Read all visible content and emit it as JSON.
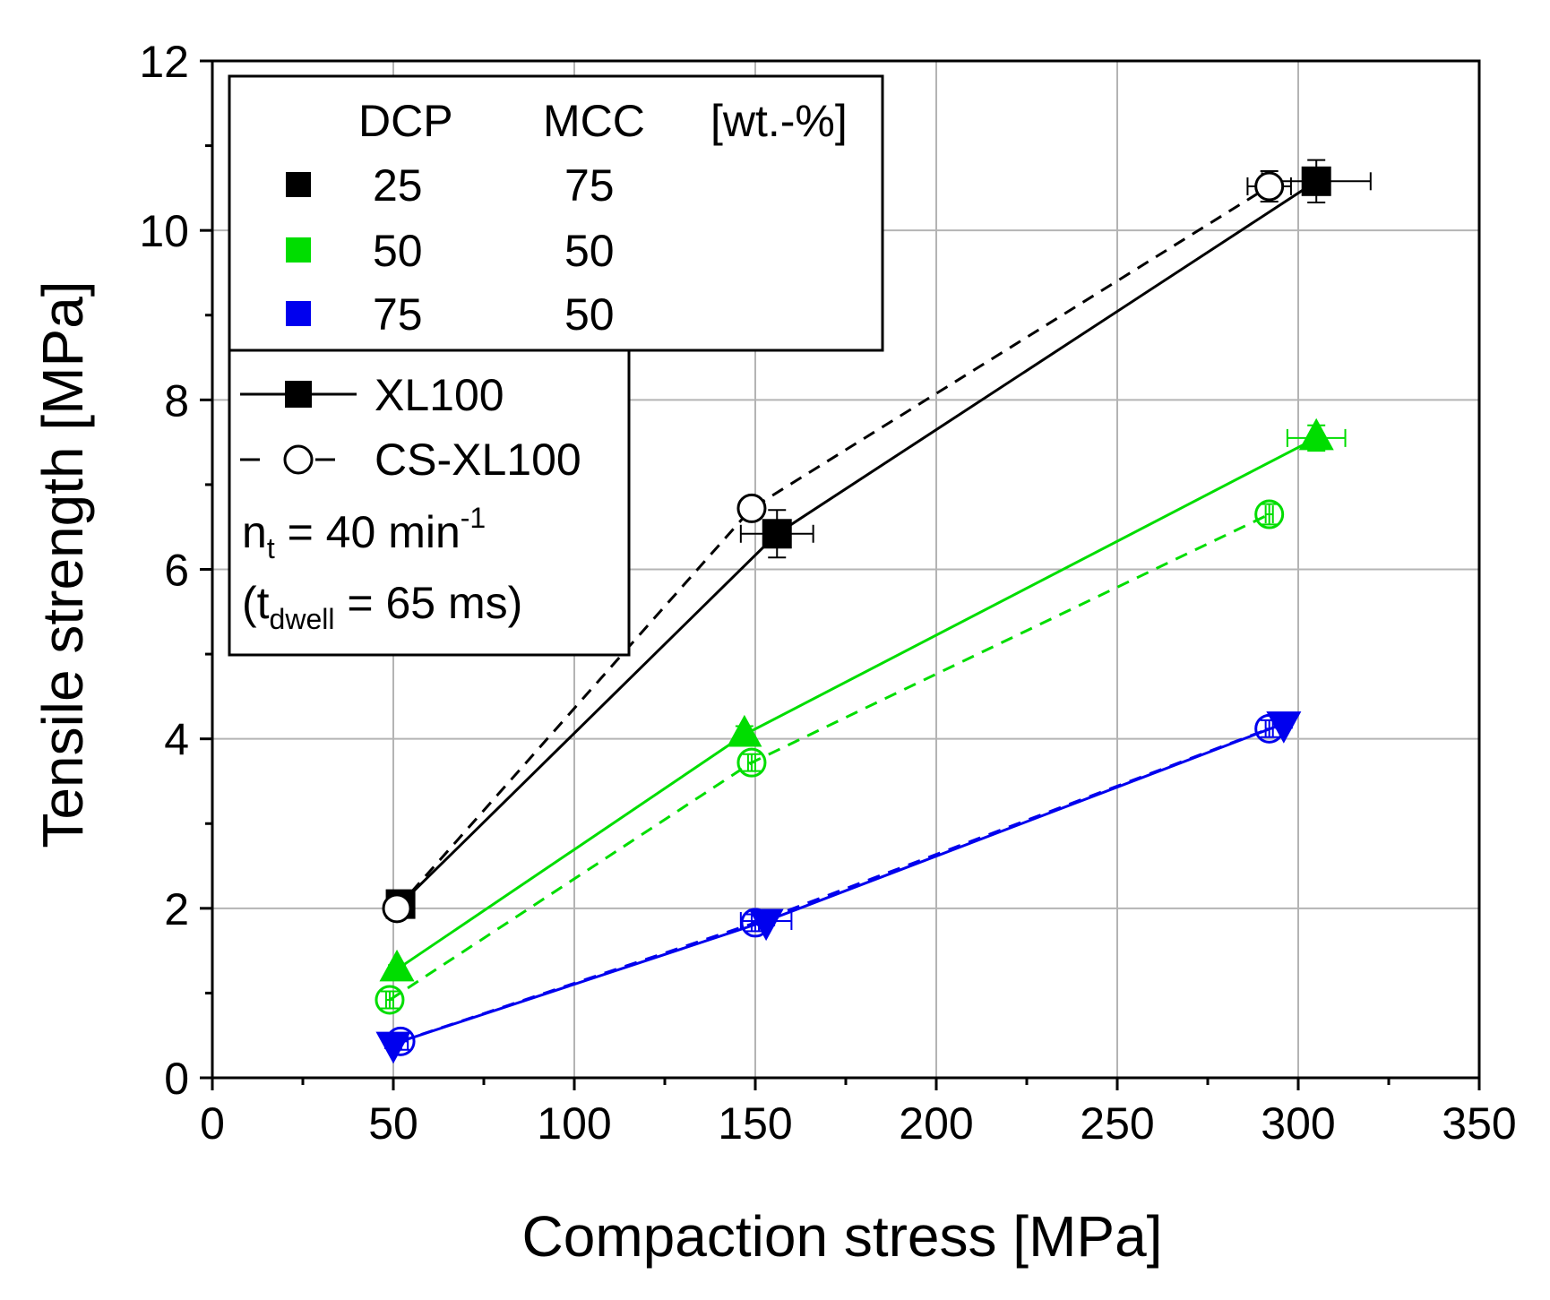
{
  "chart_data": {
    "type": "line",
    "xlabel": "Compaction stress [MPa]",
    "ylabel": "Tensile strength [MPa]",
    "xlim": [
      0,
      350
    ],
    "ylim": [
      0,
      12
    ],
    "xticks": [
      0,
      50,
      100,
      150,
      200,
      250,
      300,
      350
    ],
    "yticks": [
      0,
      2,
      4,
      6,
      8,
      10,
      12
    ],
    "xtick_labels": [
      "0",
      "50",
      "100",
      "150",
      "200",
      "250",
      "300",
      "350"
    ],
    "ytick_labels": [
      "0",
      "2",
      "4",
      "6",
      "8",
      "10",
      "12"
    ],
    "grid": true,
    "colors": {
      "black": "#000000",
      "green": "#00dd00",
      "blue": "#0000ee"
    },
    "legend_composition": {
      "header": [
        "DCP",
        "MCC",
        "[wt.-%]"
      ],
      "rows": [
        {
          "color": "#000000",
          "dcp": "25",
          "mcc": "75"
        },
        {
          "color": "#00dd00",
          "dcp": "50",
          "mcc": "50"
        },
        {
          "color": "#0000ee",
          "dcp": "75",
          "mcc": "50"
        }
      ]
    },
    "legend_materials": [
      {
        "label": "XL100",
        "line": "solid",
        "marker": "filled"
      },
      {
        "label": "CS-XL100",
        "line": "dashed",
        "marker": "open-circle"
      }
    ],
    "annotation": {
      "nt_prefix": "n",
      "nt_sub": "t",
      "nt_value": " = 40 min",
      "nt_sup": "-1",
      "dwell_open": "(t",
      "dwell_sub": "dwell",
      "dwell_value": " = 65 ms)"
    },
    "series": [
      {
        "name": "XL100 25/75",
        "color": "#000000",
        "line": "solid",
        "marker": "square",
        "filled": true,
        "x": [
          52,
          156,
          305
        ],
        "y": [
          2.05,
          6.42,
          10.58
        ],
        "xerr": [
          1,
          10,
          15
        ],
        "yerr": [
          0.05,
          0.28,
          0.25
        ]
      },
      {
        "name": "CS-XL100 25/75",
        "color": "#000000",
        "line": "dashed",
        "marker": "circle",
        "filled": false,
        "x": [
          51,
          149,
          292
        ],
        "y": [
          2.0,
          6.72,
          10.52
        ],
        "xerr": [
          0.5,
          1,
          6
        ],
        "yerr": [
          0.03,
          0.05,
          0.18
        ]
      },
      {
        "name": "XL100 50/50",
        "color": "#00dd00",
        "line": "solid",
        "marker": "triangle-up",
        "filled": true,
        "x": [
          51,
          147,
          305
        ],
        "y": [
          1.28,
          4.05,
          7.55
        ],
        "xerr": [
          0.5,
          1,
          8
        ],
        "yerr": [
          0.05,
          0.1,
          0.15
        ]
      },
      {
        "name": "CS-XL100 50/50",
        "color": "#00dd00",
        "line": "dashed",
        "marker": "circle",
        "filled": false,
        "x": [
          49,
          149,
          292
        ],
        "y": [
          0.92,
          3.72,
          6.65
        ],
        "xerr": [
          1,
          1,
          1
        ],
        "yerr": [
          0.1,
          0.1,
          0.12
        ]
      },
      {
        "name": "XL100 75/50",
        "color": "#0000ee",
        "line": "solid",
        "marker": "triangle-down",
        "filled": true,
        "x": [
          50,
          153,
          296
        ],
        "y": [
          0.4,
          1.85,
          4.18
        ],
        "xerr": [
          0.5,
          7,
          1
        ],
        "yerr": [
          0.05,
          0.05,
          0.05
        ]
      },
      {
        "name": "CS-XL100 75/50",
        "color": "#0000ee",
        "line": "dashed",
        "marker": "circle",
        "filled": false,
        "x": [
          52,
          150,
          292
        ],
        "y": [
          0.43,
          1.83,
          4.12
        ],
        "xerr": [
          2,
          1,
          1
        ],
        "yerr": [
          0.1,
          0.1,
          0.1
        ]
      }
    ]
  }
}
